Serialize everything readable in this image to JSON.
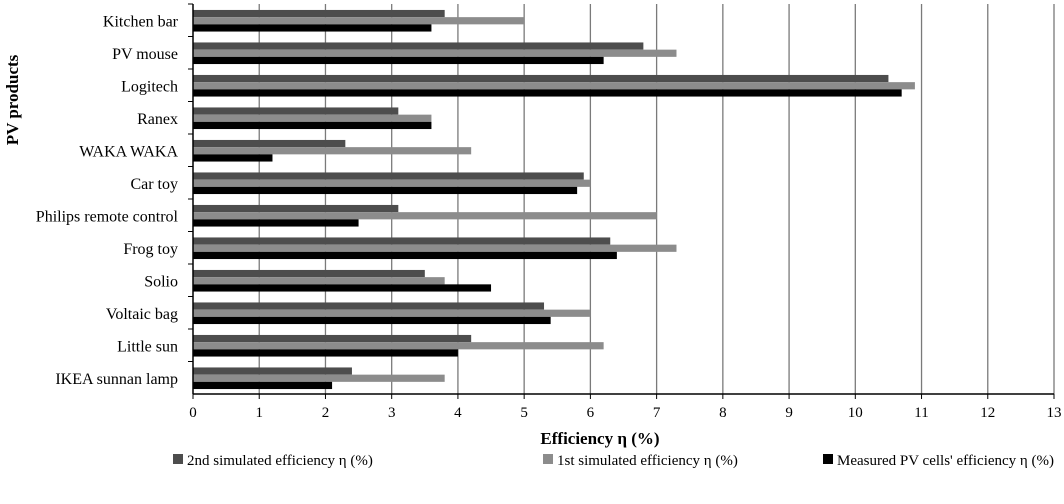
{
  "chart_data": {
    "type": "bar",
    "orientation": "horizontal",
    "title": "",
    "xlabel": "Efficiency η (%)",
    "ylabel": "PV products",
    "xlim": [
      0,
      13
    ],
    "xticks": [
      "0",
      "1",
      "2",
      "3",
      "4",
      "5",
      "6",
      "7",
      "8",
      "9",
      "10",
      "11",
      "12",
      "13"
    ],
    "grid": true,
    "legend_position": "bottom",
    "categories": [
      "Kitchen bar",
      "PV mouse",
      "Logitech",
      "Ranex",
      "WAKA WAKA",
      "Car toy",
      "Philips remote control",
      "Frog toy",
      "Solio",
      "Voltaic bag",
      "Little sun",
      "IKEA sunnan lamp"
    ],
    "series": [
      {
        "name": "2nd simulated efficiency η (%)",
        "color": "#4d4d4d",
        "values": [
          3.8,
          6.8,
          10.5,
          3.1,
          2.3,
          5.9,
          3.1,
          6.3,
          3.5,
          5.3,
          4.2,
          2.4
        ]
      },
      {
        "name": "1st simulated efficiency η (%)",
        "color": "#8c8c8c",
        "values": [
          5.0,
          7.3,
          10.9,
          3.6,
          4.2,
          6.0,
          7.0,
          7.3,
          3.8,
          6.0,
          6.2,
          3.8
        ]
      },
      {
        "name": "Measured PV cells' efficiency η (%)",
        "color": "#000000",
        "values": [
          3.6,
          6.2,
          10.7,
          3.6,
          1.2,
          5.8,
          2.5,
          6.4,
          4.5,
          5.4,
          4.0,
          2.1
        ]
      }
    ]
  }
}
